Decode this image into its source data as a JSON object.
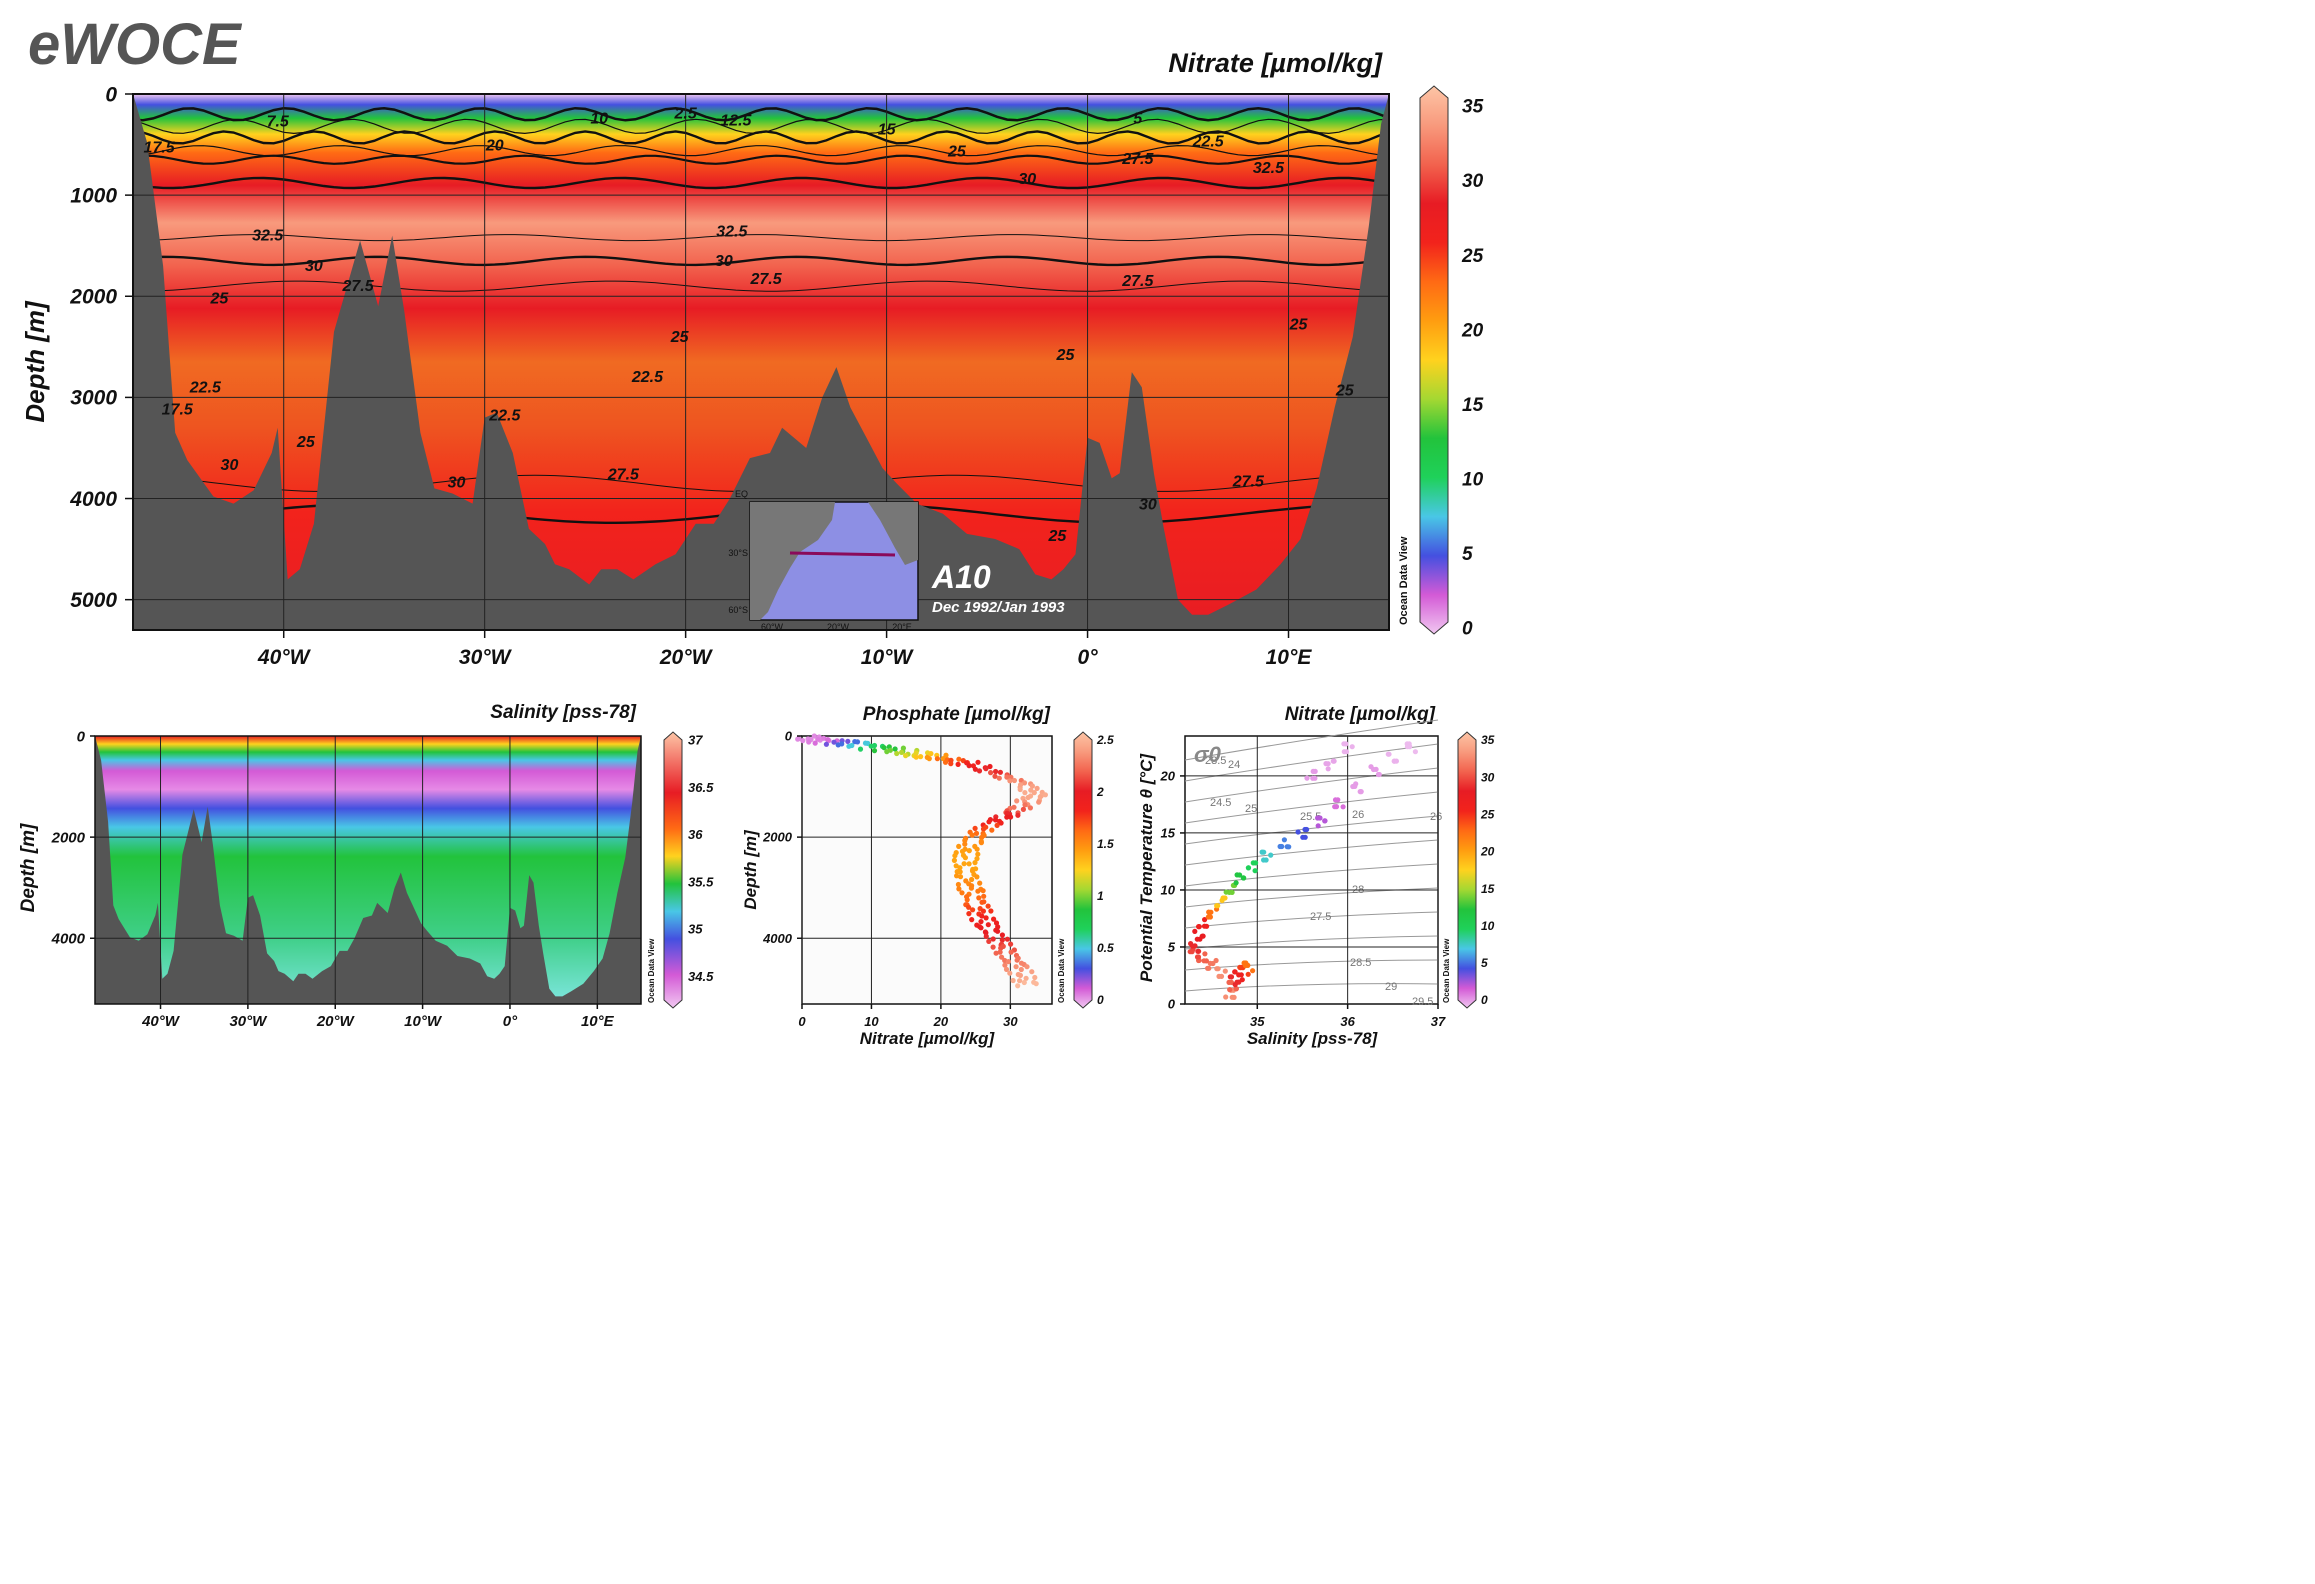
{
  "app": {
    "logo": "eWOCE"
  },
  "colors": {
    "land": "#555555",
    "frame": "#111111",
    "grid": "#222222",
    "colormap": [
      "#f1c8f1",
      "#d35ad6",
      "#4450e0",
      "#49c7e6",
      "#1fd15a",
      "#22c33c",
      "#a4d832",
      "#ffd21e",
      "#ff9d10",
      "#ff6a14",
      "#f2231c",
      "#e71c24",
      "#f2634e",
      "#f89a7d",
      "#fdc5a6"
    ]
  },
  "section": {
    "name": "A10",
    "dates": "Dec 1992/Jan 1993"
  },
  "inset_map": {
    "lat_labels": [
      "EQ",
      "30°S",
      "60°S"
    ],
    "lon_labels": [
      "60°W",
      "20°W",
      "20°E"
    ]
  },
  "watermark": "Ocean Data View",
  "chart_data": [
    {
      "type": "heatmap",
      "id": "nitrate-section",
      "title": "Nitrate [µmol/kg]",
      "ylabel": "Depth [m]",
      "xlabel": "",
      "x_tick_labels": [
        "40°W",
        "30°W",
        "20°W",
        "10°W",
        "0°",
        "10°E"
      ],
      "x_ticks": [
        -40,
        -30,
        -20,
        -10,
        0,
        10
      ],
      "xlim": [
        -47.5,
        15
      ],
      "y_tick_labels": [
        "0",
        "1000",
        "2000",
        "3000",
        "4000",
        "5000"
      ],
      "y_ticks": [
        0,
        1000,
        2000,
        3000,
        4000,
        5000
      ],
      "ylim": [
        0,
        5300
      ],
      "colorbar": {
        "range": [
          0,
          35
        ],
        "tick_labels": [
          "0",
          "5",
          "10",
          "15",
          "20",
          "25",
          "30",
          "35"
        ]
      },
      "contour_labels": [
        {
          "text": "7.5",
          "x": -40.3,
          "y": 320
        },
        {
          "text": "17.5",
          "x": -46.2,
          "y": 580
        },
        {
          "text": "2.5",
          "x": -20.0,
          "y": 240
        },
        {
          "text": "10",
          "x": -24.3,
          "y": 290
        },
        {
          "text": "12.5",
          "x": -17.5,
          "y": 310
        },
        {
          "text": "20",
          "x": -29.5,
          "y": 560
        },
        {
          "text": "15",
          "x": -10.0,
          "y": 400
        },
        {
          "text": "25",
          "x": -6.5,
          "y": 620
        },
        {
          "text": "5",
          "x": 2.5,
          "y": 290
        },
        {
          "text": "22.5",
          "x": 6.0,
          "y": 520
        },
        {
          "text": "27.5",
          "x": 2.5,
          "y": 690
        },
        {
          "text": "30",
          "x": -3.0,
          "y": 890
        },
        {
          "text": "32.5",
          "x": 9.0,
          "y": 780
        },
        {
          "text": "32.5",
          "x": -40.8,
          "y": 1450
        },
        {
          "text": "32.5",
          "x": -17.7,
          "y": 1410
        },
        {
          "text": "30",
          "x": -38.5,
          "y": 1750
        },
        {
          "text": "30",
          "x": -18.1,
          "y": 1700
        },
        {
          "text": "27.5",
          "x": -36.3,
          "y": 1950
        },
        {
          "text": "27.5",
          "x": -16.0,
          "y": 1880
        },
        {
          "text": "27.5",
          "x": 2.5,
          "y": 1900
        },
        {
          "text": "25",
          "x": -43.2,
          "y": 2070
        },
        {
          "text": "25",
          "x": -20.3,
          "y": 2450
        },
        {
          "text": "25",
          "x": -1.1,
          "y": 2630
        },
        {
          "text": "25",
          "x": 10.5,
          "y": 2330
        },
        {
          "text": "22.5",
          "x": -43.9,
          "y": 2950
        },
        {
          "text": "22.5",
          "x": -21.9,
          "y": 2850
        },
        {
          "text": "22.5",
          "x": -29.0,
          "y": 3230
        },
        {
          "text": "17.5",
          "x": -45.3,
          "y": 3170
        },
        {
          "text": "25",
          "x": -38.9,
          "y": 3490
        },
        {
          "text": "30",
          "x": -42.7,
          "y": 3720
        },
        {
          "text": "30",
          "x": -31.4,
          "y": 3890
        },
        {
          "text": "27.5",
          "x": -23.1,
          "y": 3810
        },
        {
          "text": "27.5",
          "x": 8.0,
          "y": 3880
        },
        {
          "text": "30",
          "x": 3.0,
          "y": 4110
        },
        {
          "text": "25",
          "x": -1.5,
          "y": 4420
        },
        {
          "text": "25",
          "x": 12.8,
          "y": 2980
        }
      ]
    },
    {
      "type": "heatmap",
      "id": "salinity-section",
      "title": "Salinity [pss-78]",
      "ylabel": "Depth [m]",
      "xlabel": "",
      "x_tick_labels": [
        "40°W",
        "30°W",
        "20°W",
        "10°W",
        "0°",
        "10°E"
      ],
      "x_ticks": [
        -40,
        -30,
        -20,
        -10,
        0,
        10
      ],
      "xlim": [
        -47.5,
        15
      ],
      "y_tick_labels": [
        "0",
        "2000",
        "4000"
      ],
      "y_ticks": [
        0,
        2000,
        4000
      ],
      "ylim": [
        0,
        5300
      ],
      "colorbar": {
        "range": [
          34.25,
          37
        ],
        "tick_labels": [
          "34.5",
          "35",
          "35.5",
          "36",
          "36.5",
          "37"
        ]
      }
    },
    {
      "type": "scatter",
      "id": "phosphate-profile",
      "title": "Phosphate [µmol/kg]",
      "xlabel": "Nitrate [µmol/kg]",
      "ylabel": "Depth [m]",
      "x_tick_labels": [
        "0",
        "10",
        "20",
        "30"
      ],
      "x_ticks": [
        0,
        10,
        20,
        30
      ],
      "xlim": [
        0,
        36
      ],
      "y_tick_labels": [
        "0",
        "2000",
        "4000"
      ],
      "y_ticks": [
        0,
        2000,
        4000
      ],
      "ylim": [
        0,
        5300
      ],
      "colorbar": {
        "range": [
          0,
          2.5
        ],
        "tick_labels": [
          "0",
          "0.5",
          "1",
          "1.5",
          "2",
          "2.5"
        ]
      },
      "points": [
        [
          0.5,
          40,
          0.1
        ],
        [
          1.5,
          60,
          0.1
        ],
        [
          2.5,
          80,
          0.12
        ],
        [
          3.5,
          100,
          0.15
        ],
        [
          5,
          130,
          0.3
        ],
        [
          6.5,
          150,
          0.4
        ],
        [
          8,
          180,
          0.55
        ],
        [
          10,
          220,
          0.7
        ],
        [
          12,
          250,
          0.9
        ],
        [
          13.5,
          280,
          1.0
        ],
        [
          15,
          320,
          1.1
        ],
        [
          16.5,
          350,
          1.2
        ],
        [
          18,
          380,
          1.3
        ],
        [
          19.5,
          420,
          1.45
        ],
        [
          21,
          480,
          1.6
        ],
        [
          22.5,
          520,
          1.7
        ],
        [
          24,
          560,
          1.8
        ],
        [
          25.5,
          620,
          1.9
        ],
        [
          27,
          680,
          2.0
        ],
        [
          28.5,
          760,
          2.1
        ],
        [
          30,
          840,
          2.2
        ],
        [
          31.5,
          920,
          2.3
        ],
        [
          32.5,
          1000,
          2.35
        ],
        [
          33,
          1080,
          2.38
        ],
        [
          33.5,
          1160,
          2.4
        ],
        [
          33.2,
          1240,
          2.38
        ],
        [
          32.5,
          1320,
          2.3
        ],
        [
          31.5,
          1400,
          2.2
        ],
        [
          30.5,
          1480,
          2.1
        ],
        [
          29.5,
          1560,
          2.0
        ],
        [
          28.5,
          1640,
          1.9
        ],
        [
          27.5,
          1720,
          1.8
        ],
        [
          26.5,
          1800,
          1.7
        ],
        [
          25.8,
          1900,
          1.6
        ],
        [
          25.0,
          2000,
          1.55
        ],
        [
          24.5,
          2100,
          1.5
        ],
        [
          24.0,
          2200,
          1.45
        ],
        [
          23.8,
          2300,
          1.42
        ],
        [
          23.6,
          2400,
          1.4
        ],
        [
          23.5,
          2500,
          1.4
        ],
        [
          23.5,
          2600,
          1.4
        ],
        [
          23.6,
          2700,
          1.42
        ],
        [
          23.8,
          2800,
          1.45
        ],
        [
          24.0,
          2900,
          1.5
        ],
        [
          24.2,
          3000,
          1.52
        ],
        [
          24.5,
          3100,
          1.55
        ],
        [
          24.8,
          3200,
          1.6
        ],
        [
          25.0,
          3300,
          1.65
        ],
        [
          25.3,
          3400,
          1.7
        ],
        [
          25.6,
          3500,
          1.75
        ],
        [
          26.0,
          3600,
          1.8
        ],
        [
          26.5,
          3700,
          1.85
        ],
        [
          27.0,
          3800,
          1.9
        ],
        [
          27.5,
          3900,
          1.95
        ],
        [
          28.0,
          4000,
          2.0
        ],
        [
          28.5,
          4100,
          2.05
        ],
        [
          29.0,
          4200,
          2.1
        ],
        [
          29.5,
          4300,
          2.15
        ],
        [
          30.0,
          4400,
          2.2
        ],
        [
          30.5,
          4500,
          2.25
        ],
        [
          31.0,
          4600,
          2.3
        ],
        [
          31.5,
          4700,
          2.35
        ],
        [
          32.0,
          4800,
          2.4
        ],
        [
          32.5,
          4900,
          2.45
        ]
      ]
    },
    {
      "type": "scatter",
      "id": "ts-diagram",
      "title": "Nitrate [µmol/kg]",
      "xlabel": "Salinity [pss-78]",
      "ylabel": "Potential Temperature θ [°C]",
      "x_tick_labels": [
        "35",
        "36",
        "37"
      ],
      "x_ticks": [
        35,
        36,
        37
      ],
      "xlim": [
        34.2,
        37
      ],
      "y_tick_labels": [
        "0",
        "5",
        "10",
        "15",
        "20"
      ],
      "y_ticks": [
        0,
        5,
        10,
        15,
        20
      ],
      "ylim": [
        0,
        23.5
      ],
      "density_label": "σ0",
      "isopycnal_labels": [
        "23.5",
        "24",
        "24.5",
        "25",
        "25.5",
        "26",
        "26",
        "27.5",
        "28",
        "28.5",
        "29",
        "29.5"
      ],
      "colorbar": {
        "range": [
          0,
          35
        ],
        "tick_labels": [
          "0",
          "5",
          "10",
          "15",
          "20",
          "25",
          "30",
          "35"
        ]
      },
      "points": [
        [
          34.7,
          0.8,
          32
        ],
        [
          34.72,
          1.5,
          30
        ],
        [
          34.75,
          2.0,
          28
        ],
        [
          34.8,
          2.5,
          26
        ],
        [
          34.85,
          3.0,
          24
        ],
        [
          34.9,
          3.3,
          22
        ],
        [
          34.6,
          2.8,
          32
        ],
        [
          34.5,
          3.5,
          31
        ],
        [
          34.4,
          4.0,
          30
        ],
        [
          34.3,
          4.5,
          29
        ],
        [
          34.3,
          5.0,
          28
        ],
        [
          34.35,
          6.0,
          27
        ],
        [
          34.4,
          7.0,
          26
        ],
        [
          34.5,
          8.0,
          22
        ],
        [
          34.6,
          9.0,
          18
        ],
        [
          34.7,
          10.0,
          14
        ],
        [
          34.8,
          11.0,
          12
        ],
        [
          34.95,
          12.0,
          10
        ],
        [
          35.1,
          13.0,
          8
        ],
        [
          35.3,
          14.0,
          6
        ],
        [
          35.5,
          15.0,
          5
        ],
        [
          35.7,
          16.0,
          3
        ],
        [
          35.9,
          17.5,
          2
        ],
        [
          36.1,
          19.0,
          1
        ],
        [
          36.3,
          20.5,
          1
        ],
        [
          36.5,
          21.5,
          0.5
        ],
        [
          36.7,
          22.5,
          0.3
        ],
        [
          35.6,
          20.0,
          1
        ],
        [
          35.8,
          21.0,
          0.8
        ],
        [
          36.0,
          22.5,
          0.5
        ]
      ]
    }
  ]
}
